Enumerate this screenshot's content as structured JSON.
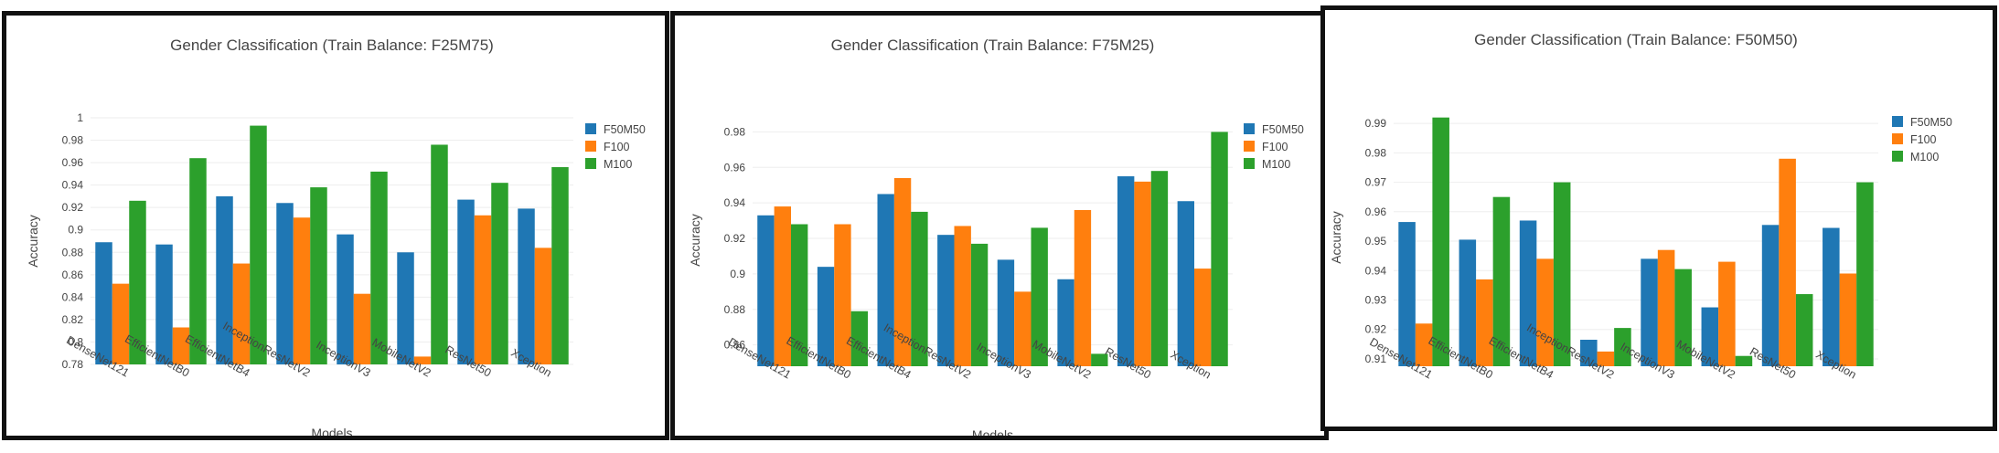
{
  "colors": {
    "F50M50": "#1f77b4",
    "F100": "#ff7f0e",
    "M100": "#2ca02c",
    "grid": "#eeeeee",
    "text": "#444444"
  },
  "chart_data": [
    {
      "type": "bar",
      "title": "Gender Classification (Train Balance: F25M75)",
      "xlabel": "Models",
      "ylabel": "Accuracy",
      "ylim": [
        0.78,
        1.0
      ],
      "yticks": [
        0.78,
        0.8,
        0.82,
        0.84,
        0.86,
        0.88,
        0.9,
        0.92,
        0.94,
        0.96,
        0.98,
        1
      ],
      "ytick_labels": [
        "0.78",
        "0.8",
        "0.82",
        "0.84",
        "0.86",
        "0.88",
        "0.9",
        "0.92",
        "0.94",
        "0.96",
        "0.98",
        "1"
      ],
      "grid": true,
      "legend_position": "top-right",
      "categories": [
        "DenseNet121",
        "EfficientNetB0",
        "EfficientNetB4",
        "InceptionResNetV2",
        "InceptionV3",
        "MobileNetV2",
        "ResNet50",
        "Xception"
      ],
      "series": [
        {
          "name": "F50M50",
          "values": [
            0.889,
            0.887,
            0.93,
            0.924,
            0.896,
            0.88,
            0.927,
            0.919
          ]
        },
        {
          "name": "F100",
          "values": [
            0.852,
            0.813,
            0.87,
            0.911,
            0.843,
            0.787,
            0.913,
            0.884
          ]
        },
        {
          "name": "M100",
          "values": [
            0.926,
            0.964,
            0.993,
            0.938,
            0.952,
            0.976,
            0.942,
            0.956
          ]
        }
      ]
    },
    {
      "type": "bar",
      "title": "Gender Classification (Train Balance: F75M25)",
      "xlabel": "Models",
      "ylabel": "Accuracy",
      "ylim": [
        0.848,
        0.99
      ],
      "yticks": [
        0.86,
        0.88,
        0.9,
        0.92,
        0.94,
        0.96,
        0.98
      ],
      "ytick_labels": [
        "0.86",
        "0.88",
        "0.9",
        "0.92",
        "0.94",
        "0.96",
        "0.98"
      ],
      "grid": true,
      "legend_position": "top-right",
      "categories": [
        "DenseNet121",
        "EfficientNetB0",
        "EfficientNetB4",
        "InceptionResNetV2",
        "InceptionV3",
        "MobileNetV2",
        "ResNet50",
        "Xception"
      ],
      "series": [
        {
          "name": "F50M50",
          "values": [
            0.933,
            0.904,
            0.945,
            0.922,
            0.908,
            0.897,
            0.955,
            0.941
          ]
        },
        {
          "name": "F100",
          "values": [
            0.938,
            0.928,
            0.954,
            0.927,
            0.89,
            0.936,
            0.952,
            0.903
          ]
        },
        {
          "name": "M100",
          "values": [
            0.928,
            0.879,
            0.935,
            0.917,
            0.926,
            0.855,
            0.958,
            0.98
          ]
        }
      ]
    },
    {
      "type": "bar",
      "title": "Gender Classification (Train Balance: F50M50)",
      "xlabel": "Models",
      "ylabel": "Accuracy",
      "ylim": [
        0.9075,
        0.995
      ],
      "yticks": [
        0.91,
        0.92,
        0.93,
        0.94,
        0.95,
        0.96,
        0.97,
        0.98,
        0.99
      ],
      "ytick_labels": [
        "0.91",
        "0.92",
        "0.93",
        "0.94",
        "0.95",
        "0.96",
        "0.97",
        "0.98",
        "0.99"
      ],
      "grid": true,
      "legend_position": "top-right",
      "categories": [
        "DenseNet121",
        "EfficientNetB0",
        "EfficientNetB4",
        "InceptionResNetV2",
        "InceptionV3",
        "MobileNetV2",
        "ResNet50",
        "Xception"
      ],
      "series": [
        {
          "name": "F50M50",
          "values": [
            0.9565,
            0.9505,
            0.957,
            0.9165,
            0.944,
            0.9275,
            0.9555,
            0.9545
          ]
        },
        {
          "name": "F100",
          "values": [
            0.922,
            0.937,
            0.944,
            0.9125,
            0.947,
            0.943,
            0.978,
            0.939
          ]
        },
        {
          "name": "M100",
          "values": [
            0.992,
            0.965,
            0.97,
            0.9205,
            0.9405,
            0.911,
            0.932,
            0.97
          ]
        }
      ]
    }
  ]
}
